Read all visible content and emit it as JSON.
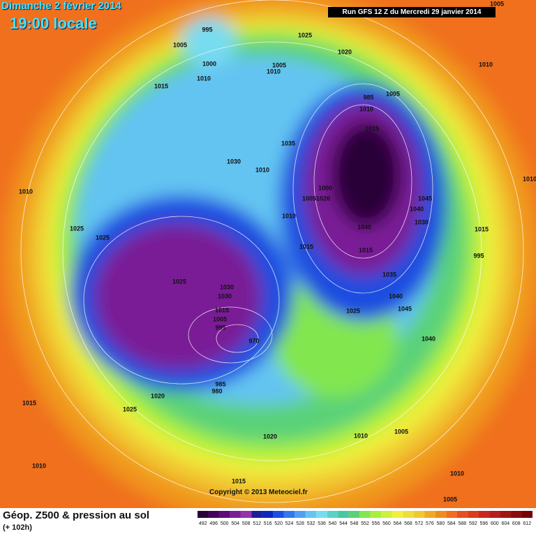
{
  "header": {
    "date": "Dimanche 2 février 2014",
    "time": "19:00 locale",
    "run": "Run GFS 12 Z du Mercredi 29 janvier 2014"
  },
  "footer": {
    "title": "Géop. Z500 & pression au sol",
    "lead": "(+ 102h)",
    "copyright": "Copyright © 2013 Meteociel.fr"
  },
  "isobar_labels": [
    995,
    1005,
    1000,
    1010,
    1015,
    1025,
    1020,
    1005,
    1010,
    1005,
    1010,
    1005,
    985,
    1010,
    1015,
    1035,
    1030,
    1010,
    1010,
    1000,
    1005,
    1020,
    1010,
    1040,
    1040,
    1045,
    1030,
    1025,
    1025,
    1015,
    1015,
    1015,
    995,
    1025,
    1030,
    1030,
    1035,
    1040,
    1045,
    1025,
    1040,
    970,
    985,
    980,
    1020,
    1015,
    1025,
    1020,
    1010,
    1005,
    1010,
    1010,
    1015,
    1005,
    1010,
    1015,
    1005,
    995
  ],
  "scale": {
    "values": [
      492,
      496,
      500,
      504,
      508,
      512,
      516,
      520,
      524,
      528,
      532,
      536,
      540,
      544,
      548,
      552,
      556,
      560,
      564,
      568,
      572,
      576,
      580,
      584,
      588,
      592,
      596,
      600,
      604,
      608,
      612
    ],
    "colors": [
      "#2a0038",
      "#44005a",
      "#5e0a7a",
      "#7a1e96",
      "#9632aa",
      "#1e1e96",
      "#0a28c0",
      "#1e4ee0",
      "#3278f0",
      "#4ea0f2",
      "#64c4f2",
      "#78dcf0",
      "#5ad2c8",
      "#46c8a0",
      "#5ad278",
      "#82e650",
      "#a8f03c",
      "#ccf03c",
      "#f0f03c",
      "#f0dc3c",
      "#f0c832",
      "#f0aa28",
      "#f08c1e",
      "#f06e1e",
      "#e6501e",
      "#dc3c1e",
      "#c8281e",
      "#b41e1e",
      "#a01414",
      "#8c0a0a",
      "#780000"
    ]
  }
}
